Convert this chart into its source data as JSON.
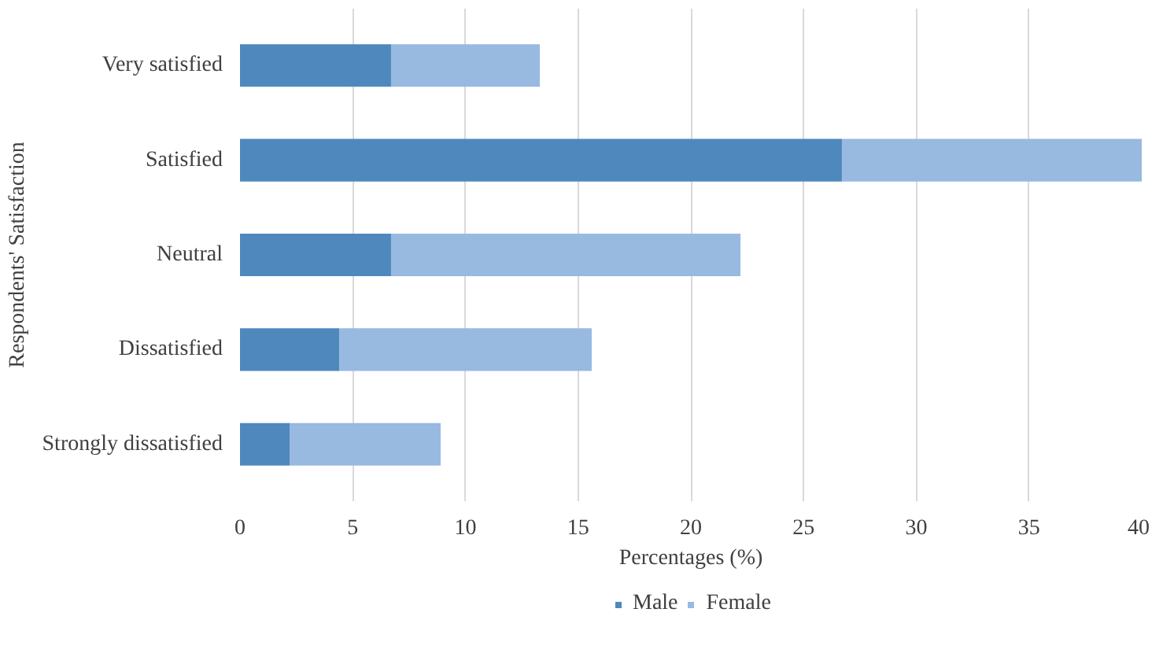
{
  "chart_data": {
    "type": "bar",
    "orientation": "horizontal",
    "stacked": true,
    "xlabel": "Percentages (%)",
    "ylabel": "Respondents' Satisfaction",
    "categories": [
      "Very satisfied",
      "Satisfied",
      "Neutral",
      "Dissatisfied",
      "Strongly dissatisfied"
    ],
    "series": [
      {
        "name": "Male",
        "color": "#4f88bd",
        "values": [
          6.7,
          26.7,
          6.7,
          4.4,
          2.2
        ]
      },
      {
        "name": "Female",
        "color": "#98b9e0",
        "values": [
          6.6,
          13.3,
          15.5,
          11.2,
          6.7
        ]
      }
    ],
    "xlim": [
      0,
      40
    ],
    "xticks": [
      0,
      5,
      10,
      15,
      20,
      25,
      30,
      35,
      40
    ],
    "grid": "x",
    "legend": "bottom"
  }
}
